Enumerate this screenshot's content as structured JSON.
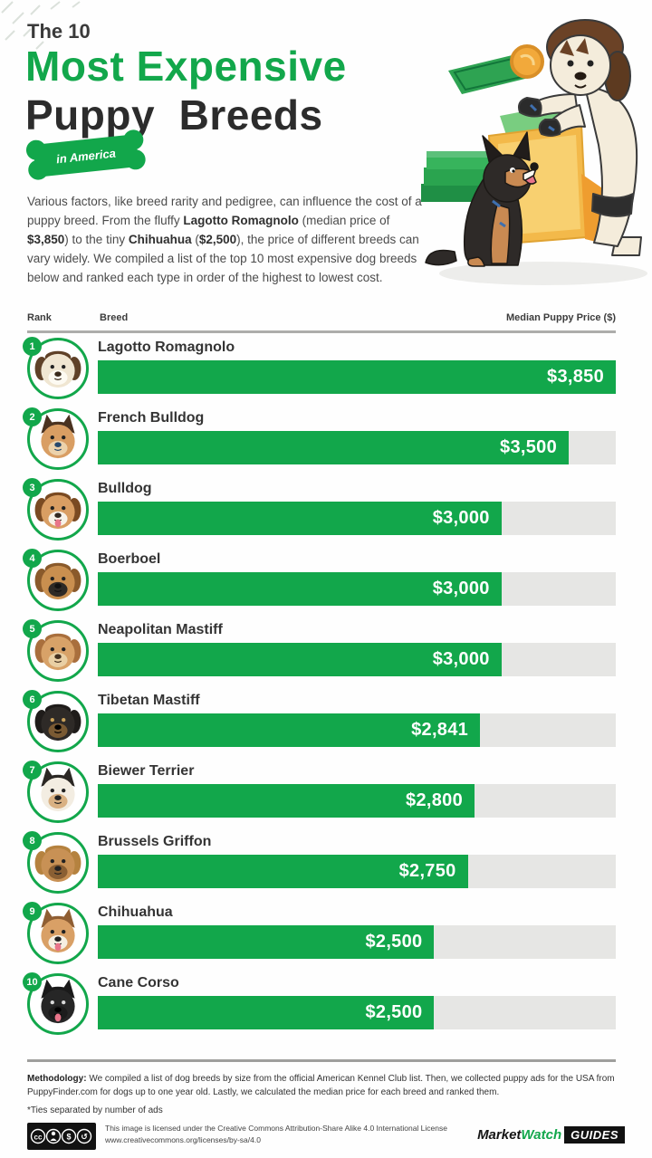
{
  "colors": {
    "accent_green": "#12a74b",
    "bar_track_gray": "#e6e6e4",
    "title_dark": "#2c2c2c",
    "footer_badge_black": "#121212"
  },
  "header": {
    "kicker": "The 10",
    "title_line1": "Most Expensive",
    "title_line2": "Puppy  Breeds",
    "badge": "in America"
  },
  "icons": {
    "header_illustration": "two-dogs-with-money-counter",
    "rank_badge": "numbered-green-circle",
    "row_avatar": "dog-face-in-green-ring",
    "footer_badge": "creative-commons-license-icons"
  },
  "intro_segments": [
    {
      "text": "Various factors, like breed rarity and pedigree, can influence the cost of a puppy breed. From the fluffy ",
      "bold": false
    },
    {
      "text": "Lagotto Romagnolo",
      "bold": true
    },
    {
      "text": " (median price of ",
      "bold": false
    },
    {
      "text": "$3,850",
      "bold": true
    },
    {
      "text": ") to the tiny ",
      "bold": false
    },
    {
      "text": "Chihuahua",
      "bold": true
    },
    {
      "text": " (",
      "bold": false
    },
    {
      "text": "$2,500",
      "bold": true
    },
    {
      "text": "), the price of different breeds can vary widely. We compiled a list of the top 10 most expensive dog breeds below and ranked each type in order of the highest to lowest cost.",
      "bold": false
    }
  ],
  "table": {
    "rank_header": "Rank",
    "breed_header": "Breed",
    "price_header": "Median Puppy Price ($)"
  },
  "chart_data": {
    "type": "bar",
    "orientation": "horizontal",
    "title": "The 10 Most Expensive Puppy Breeds in America",
    "xlabel": "Median Puppy Price ($)",
    "ylabel": "Breed",
    "xlim": [
      0,
      3850
    ],
    "grid": false,
    "legend": "none",
    "ranks": [
      1,
      2,
      3,
      4,
      5,
      6,
      7,
      8,
      9,
      10
    ],
    "categories": [
      "Lagotto Romagnolo",
      "French Bulldog",
      "Bulldog",
      "Boerboel",
      "Neapolitan Mastiff",
      "Tibetan Mastiff",
      "Biewer Terrier",
      "Brussels Griffon",
      "Chihuahua",
      "Cane Corso"
    ],
    "values": [
      3850,
      3500,
      3000,
      3000,
      3000,
      2841,
      2800,
      2750,
      2500,
      2500
    ],
    "value_labels": [
      "$3,850",
      "$3,500",
      "$3,000",
      "$3,000",
      "$3,000",
      "$2,841",
      "$2,800",
      "$2,750",
      "$2,500",
      "$2,500"
    ]
  },
  "breed_avatars": [
    {
      "ear": "#5f4128",
      "head": "#f0e6d2",
      "muzzle": "#fdfaf2",
      "nose": "#3a2a1d",
      "eye": "#222222",
      "tongue": false,
      "pointy": false
    },
    {
      "ear": "#4a3220",
      "head": "#d99e63",
      "muzzle": "#ecd2ab",
      "nose": "#27496d",
      "eye": "#222222",
      "tongue": false,
      "pointy": true
    },
    {
      "ear": "#7a4a22",
      "head": "#d99e63",
      "muzzle": "#f7f2e8",
      "nose": "#332a22",
      "eye": "#222222",
      "tongue": true,
      "pointy": false
    },
    {
      "ear": "#8a5a2b",
      "head": "#c98f4f",
      "muzzle": "#2e2a26",
      "nose": "#111111",
      "eye": "#222222",
      "tongue": false,
      "pointy": false
    },
    {
      "ear": "#a96f3d",
      "head": "#d8a268",
      "muzzle": "#e9cfa4",
      "nose": "#43301f",
      "eye": "#222222",
      "tongue": false,
      "pointy": false
    },
    {
      "ear": "#1f1c1a",
      "head": "#2e2a27",
      "muzzle": "#7a5a33",
      "nose": "#000000",
      "eye": "#c9a15a",
      "tongue": false,
      "pointy": false
    },
    {
      "ear": "#2b2724",
      "head": "#f3ede2",
      "muzzle": "#d9b183",
      "nose": "#222222",
      "eye": "#222222",
      "tongue": false,
      "pointy": true
    },
    {
      "ear": "#b5823f",
      "head": "#c89155",
      "muzzle": "#8a5f33",
      "nose": "#222222",
      "eye": "#222222",
      "tongue": false,
      "pointy": false
    },
    {
      "ear": "#8f5e33",
      "head": "#d9a066",
      "muzzle": "#f6efe2",
      "nose": "#222222",
      "eye": "#222222",
      "tongue": true,
      "pointy": true
    },
    {
      "ear": "#1a1a1a",
      "head": "#262626",
      "muzzle": "#1c1c1c",
      "nose": "#000000",
      "eye": "#d9d9d9",
      "tongue": true,
      "pointy": true
    }
  ],
  "footer": {
    "methodology_segments": [
      {
        "text": "Methodology:",
        "bold": true
      },
      {
        "text": " We compiled a list of dog breeds by size from the official American Kennel Club list. Then, we collected puppy ads for the USA from PuppyFinder.com for dogs up to one year old. Lastly, we calculated the median price for each breed and ranked them.",
        "bold": false
      }
    ],
    "ties_note": "*Ties separated by number of ads",
    "license_line1": "This image is licensed under the Creative Commons Attribution-Share Alike 4.0 International License",
    "license_line2": "www.creativecommons.org/licenses/by-sa/4.0",
    "logo": {
      "part1": "Market",
      "part2": "Watch",
      "part3": "GUIDES"
    }
  }
}
